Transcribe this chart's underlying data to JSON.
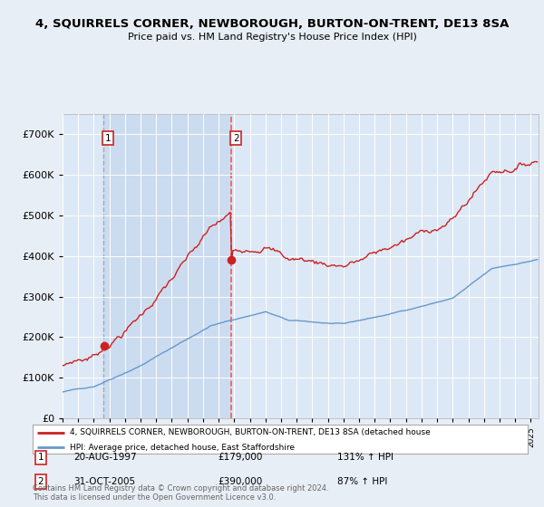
{
  "title": "4, SQUIRRELS CORNER, NEWBOROUGH, BURTON-ON-TRENT, DE13 8SA",
  "subtitle": "Price paid vs. HM Land Registry's House Price Index (HPI)",
  "legend_line1": "4, SQUIRRELS CORNER, NEWBOROUGH, BURTON-ON-TRENT, DE13 8SA (detached house",
  "legend_line2": "HPI: Average price, detached house, East Staffordshire",
  "ann1": {
    "label": "1",
    "date_label": "20-AUG-1997",
    "price": "£179,000",
    "hpi_text": "131% ↑ HPI",
    "x_year": 1997.64,
    "price_val": 179000
  },
  "ann2": {
    "label": "2",
    "date_label": "31-OCT-2005",
    "price": "£390,000",
    "hpi_text": "87% ↑ HPI",
    "x_year": 2005.83,
    "price_val": 390000
  },
  "footer": "Contains HM Land Registry data © Crown copyright and database right 2024.\nThis data is licensed under the Open Government Licence v3.0.",
  "ylim": [
    0,
    750000
  ],
  "yticks": [
    0,
    100000,
    200000,
    300000,
    400000,
    500000,
    600000,
    700000
  ],
  "xlim": [
    1995,
    2025.5
  ],
  "background_color": "#e8eef5",
  "plot_bg_color": "#dce8f5",
  "highlight_color": "#ccdcf0",
  "red_color": "#cc2222",
  "blue_color": "#6699cc",
  "grid_color": "#ffffff",
  "dashed1_color": "#aaaaaa",
  "dashed2_color": "#ff5555"
}
